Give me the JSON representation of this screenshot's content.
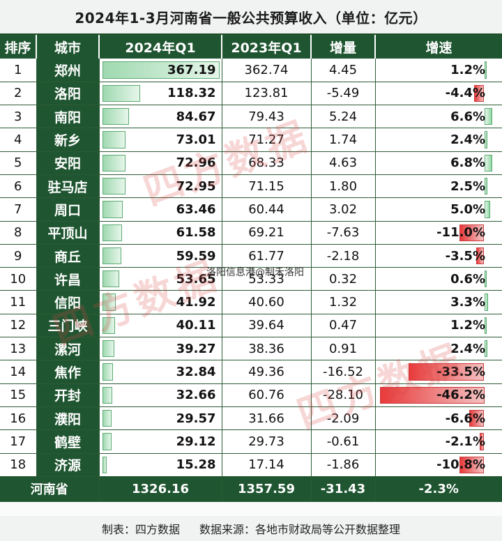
{
  "title": "2024年1-3月河南省一般公共预算收入（单位：亿元）",
  "headers": [
    "排序",
    "城市",
    "2024年Q1",
    "2023年Q1",
    "增量",
    "增速"
  ],
  "chart_data": {
    "type": "table",
    "rows": [
      {
        "rank": "1",
        "city": "郑州",
        "q1_2024": "367.19",
        "q1_2023": "362.74",
        "increment": "4.45",
        "growth": "1.2%",
        "v24": 367.19,
        "g": 1.2
      },
      {
        "rank": "2",
        "city": "洛阳",
        "q1_2024": "118.32",
        "q1_2023": "123.81",
        "increment": "-5.49",
        "growth": "-4.4%",
        "v24": 118.32,
        "g": -4.4
      },
      {
        "rank": "3",
        "city": "南阳",
        "q1_2024": "84.67",
        "q1_2023": "79.43",
        "increment": "5.24",
        "growth": "6.6%",
        "v24": 84.67,
        "g": 6.6
      },
      {
        "rank": "4",
        "city": "新乡",
        "q1_2024": "73.01",
        "q1_2023": "71.27",
        "increment": "1.74",
        "growth": "2.4%",
        "v24": 73.01,
        "g": 2.4
      },
      {
        "rank": "5",
        "city": "安阳",
        "q1_2024": "72.96",
        "q1_2023": "68.33",
        "increment": "4.63",
        "growth": "6.8%",
        "v24": 72.96,
        "g": 6.8
      },
      {
        "rank": "6",
        "city": "驻马店",
        "q1_2024": "72.95",
        "q1_2023": "71.15",
        "increment": "1.80",
        "growth": "2.5%",
        "v24": 72.95,
        "g": 2.5
      },
      {
        "rank": "7",
        "city": "周口",
        "q1_2024": "63.46",
        "q1_2023": "60.44",
        "increment": "3.02",
        "growth": "5.0%",
        "v24": 63.46,
        "g": 5.0
      },
      {
        "rank": "8",
        "city": "平顶山",
        "q1_2024": "61.58",
        "q1_2023": "69.21",
        "increment": "-7.63",
        "growth": "-11.0%",
        "v24": 61.58,
        "g": -11.0
      },
      {
        "rank": "9",
        "city": "商丘",
        "q1_2024": "59.59",
        "q1_2023": "61.77",
        "increment": "-2.18",
        "growth": "-3.5%",
        "v24": 59.59,
        "g": -3.5
      },
      {
        "rank": "10",
        "city": "许昌",
        "q1_2024": "53.65",
        "q1_2023": "53.33",
        "increment": "0.32",
        "growth": "0.6%",
        "v24": 53.65,
        "g": 0.6
      },
      {
        "rank": "11",
        "city": "信阳",
        "q1_2024": "41.92",
        "q1_2023": "40.60",
        "increment": "1.32",
        "growth": "3.3%",
        "v24": 41.92,
        "g": 3.3
      },
      {
        "rank": "12",
        "city": "三门峡",
        "q1_2024": "40.11",
        "q1_2023": "39.64",
        "increment": "0.47",
        "growth": "1.2%",
        "v24": 40.11,
        "g": 1.2
      },
      {
        "rank": "13",
        "city": "漯河",
        "q1_2024": "39.27",
        "q1_2023": "38.36",
        "increment": "0.91",
        "growth": "2.4%",
        "v24": 39.27,
        "g": 2.4
      },
      {
        "rank": "14",
        "city": "焦作",
        "q1_2024": "32.84",
        "q1_2023": "49.36",
        "increment": "-16.52",
        "growth": "-33.5%",
        "v24": 32.84,
        "g": -33.5
      },
      {
        "rank": "15",
        "city": "开封",
        "q1_2024": "32.66",
        "q1_2023": "60.76",
        "increment": "-28.10",
        "growth": "-46.2%",
        "v24": 32.66,
        "g": -46.2
      },
      {
        "rank": "16",
        "city": "濮阳",
        "q1_2024": "29.57",
        "q1_2023": "31.66",
        "increment": "-2.09",
        "growth": "-6.6%",
        "v24": 29.57,
        "g": -6.6
      },
      {
        "rank": "17",
        "city": "鹤壁",
        "q1_2024": "29.12",
        "q1_2023": "29.73",
        "increment": "-0.61",
        "growth": "-2.1%",
        "v24": 29.12,
        "g": -2.1
      },
      {
        "rank": "18",
        "city": "济源",
        "q1_2024": "15.28",
        "q1_2023": "17.14",
        "increment": "-1.86",
        "growth": "-10.8%",
        "v24": 15.28,
        "g": -10.8
      }
    ],
    "total": {
      "label": "河南省",
      "q1_2024": "1326.16",
      "q1_2023": "1357.59",
      "increment": "-31.43",
      "growth": "-2.3%"
    }
  },
  "watermarks": [
    "四方数据",
    "四方数据",
    "四方数据"
  ],
  "overlay_text": "洛阳信息港@制禾洛阳",
  "footer": {
    "maker": "制表：四方数据",
    "source": "数据来源：各地市财政局等公开数据整理"
  },
  "colors": {
    "header_green": "#1f5631",
    "bar_green": "#8fd6a4",
    "bar_red": "#e83a3a",
    "watermark_red": "#dc4646"
  }
}
